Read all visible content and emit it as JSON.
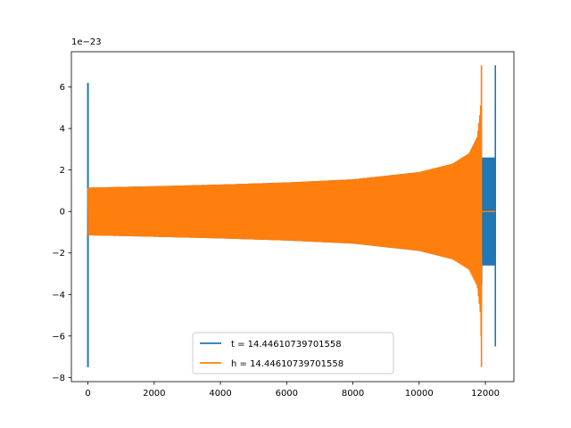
{
  "chart_data": {
    "type": "line",
    "title": "",
    "xlabel": "",
    "ylabel": "",
    "y_offset_label": "1e−23",
    "xlim": [
      -500,
      12860
    ],
    "ylim": [
      -8.2,
      7.7
    ],
    "x_ticks": [
      0,
      2000,
      4000,
      6000,
      8000,
      10000,
      12000
    ],
    "x_tick_labels": [
      "0",
      "2000",
      "4000",
      "6000",
      "8000",
      "10000",
      "12000"
    ],
    "y_ticks": [
      -8,
      -6,
      -4,
      -2,
      0,
      2,
      4,
      6
    ],
    "y_tick_labels": [
      "−8",
      "−6",
      "−4",
      "−2",
      "0",
      "2",
      "4",
      "6"
    ],
    "grid": false,
    "legend_position": "lower center",
    "series": [
      {
        "name": "t = 14.44610739701558",
        "color": "#1f77b4",
        "description_points": {
          "spike_x": 0,
          "spike_max": 6.2,
          "spike_min": -7.5,
          "envelope_x": [
            0,
            2000,
            4000,
            6000,
            8000,
            10000,
            11000,
            11600,
            11800,
            11880,
            11900,
            12300
          ],
          "envelope_amp": [
            1.15,
            1.22,
            1.3,
            1.4,
            1.55,
            1.9,
            2.3,
            2.8,
            3.6,
            5.0,
            2.6,
            2.6
          ],
          "end_spike_x": 12300,
          "end_spike_max": 7.05,
          "end_spike_min": -6.5
        }
      },
      {
        "name": "h = 14.44610739701558",
        "color": "#ff7f0e",
        "description_points": {
          "start_x": 0,
          "envelope_x": [
            0,
            2000,
            4000,
            6000,
            8000,
            10000,
            11000,
            11500,
            11750,
            11850,
            11880,
            11900
          ],
          "envelope_amp": [
            1.15,
            1.22,
            1.3,
            1.4,
            1.55,
            1.9,
            2.3,
            2.8,
            3.6,
            5.0,
            7.0,
            7.05
          ],
          "merger_x": 11880,
          "merger_max": 7.05,
          "merger_min": -7.5,
          "ringdown_end_x": 12300
        }
      }
    ]
  }
}
